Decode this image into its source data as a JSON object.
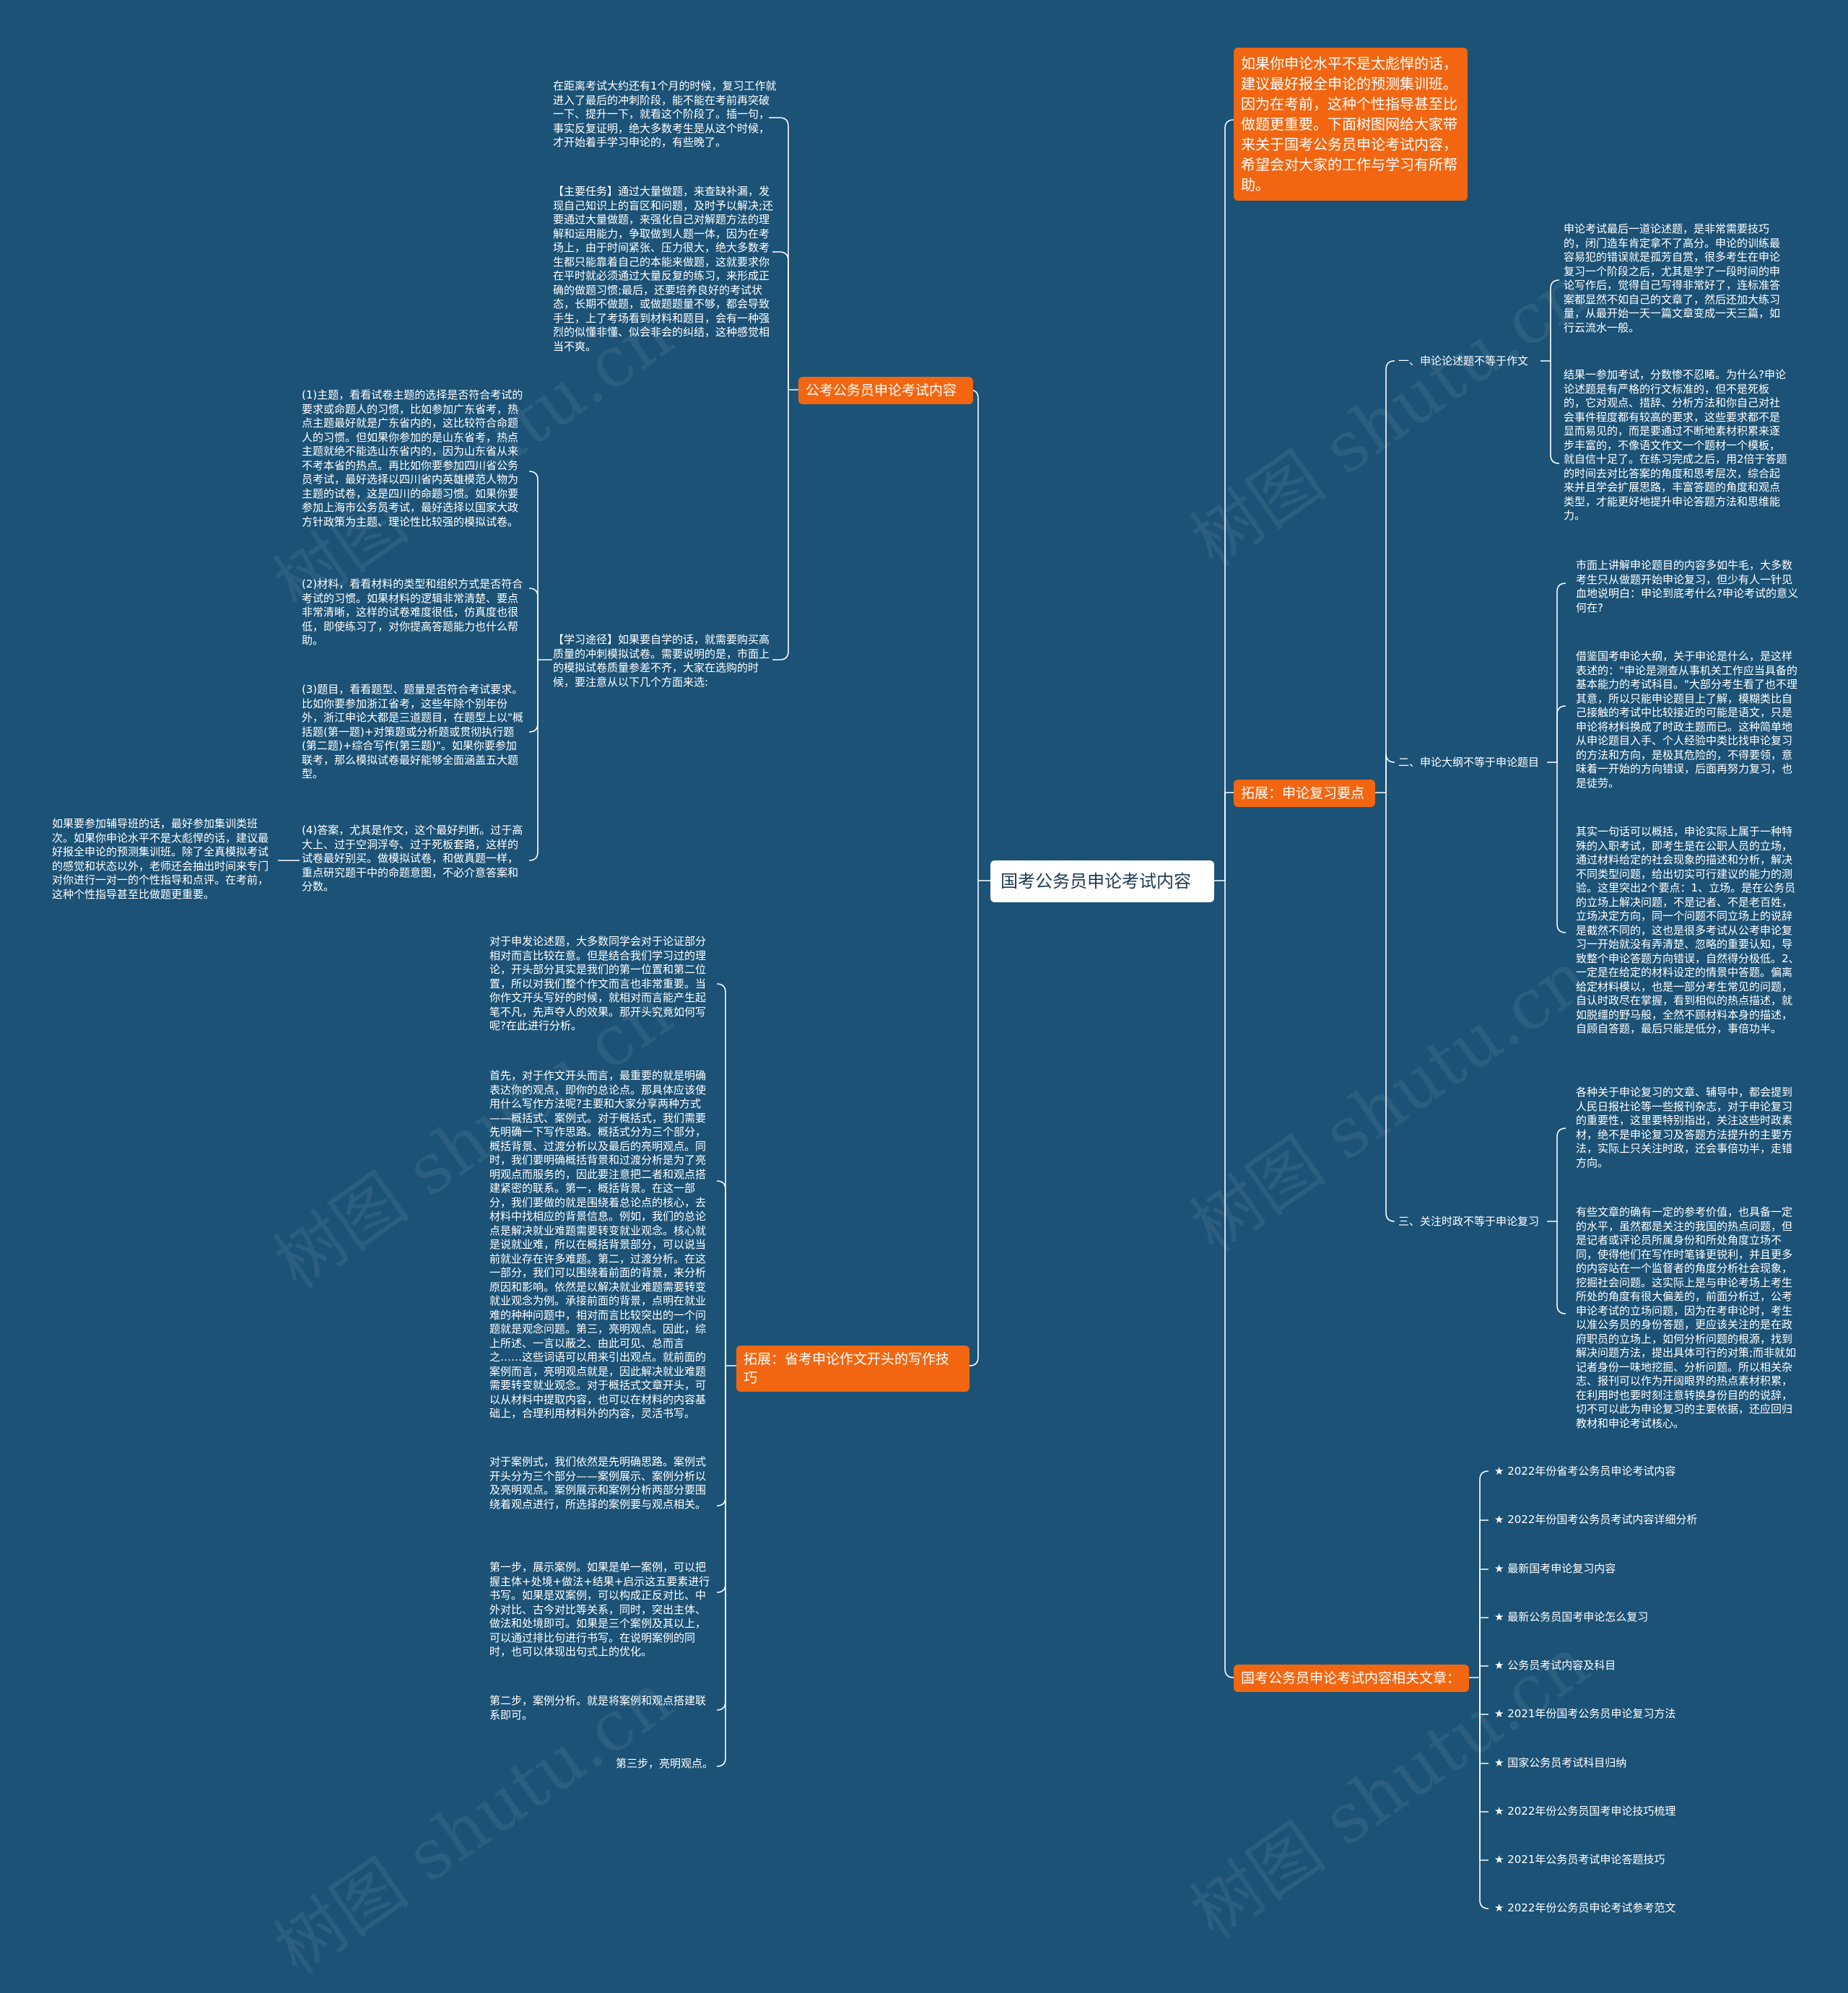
{
  "center": "国考公务员申论考试内容",
  "intro": "如果你申论水平不是太彪悍的话，建议最好报全申论的预测集训班。因为在考前，这种个性指导甚至比做题更重要。下面树图网给大家带来关于国考公务员申论考试内容，希望会对大家的工作与学习有所帮助。",
  "left_branches": [
    {
      "title": "公考公务员申论考试内容",
      "texts": [
        "在距离考试大约还有1个月的时候，复习工作就进入了最后的冲刺阶段，能不能在考前再突破一下、提升一下，就看这个阶段了。插一句，事实反复证明，绝大多数考生是从这个时候，才开始着手学习申论的，有些晚了。",
        "【主要任务】通过大量做题，来查缺补漏，发现自己知识上的盲区和问题，及时予以解决;还要通过大量做题，来强化自己对解题方法的理解和运用能力，争取做到人题一体，因为在考场上，由于时间紧张、压力很大，绝大多数考生都只能靠着自己的本能来做题，这就要求你在平时就必须通过大量反复的练习，来形成正确的做题习惯;最后，还要培养良好的考试状态，长期不做题，或做题题量不够，都会导致手生，上了考场看到材料和题目，会有一种强烈的似懂非懂、似会非会的纠结，这种感觉相当不爽。",
        "【学习途径】如果要自学的话，就需要购买高质量的冲刺模拟试卷。需要说明的是，市面上的模拟试卷质量参差不齐，大家在选购的时候，要注意从以下几个方面来选:"
      ],
      "subitems": [
        "(1)主题，看看试卷主题的选择是否符合考试的要求或命题人的习惯，比如参加广东省考，热点主题最好就是广东省内的，这比较符合命题人的习惯。但如果你参加的是山东省考，热点主题就绝不能选山东省内的，因为山东省从来不考本省的热点。再比如你要参加四川省公务员考试，最好选择以四川省内英雄模范人物为主题的试卷，这是四川的命题习惯。如果你要参加上海市公务员考试，最好选择以国家大政方针政策为主题、理论性比较强的模拟试卷。",
        "(2)材料，看看材料的类型和组织方式是否符合考试的习惯。如果材料的逻辑非常清楚、要点非常清晰，这样的试卷难度很低，仿真度也很低，即使练习了，对你提高答题能力也什么帮助。",
        "(3)题目，看看题型、题量是否符合考试要求。比如你要参加浙江省考，这些年除个别年份外，浙江申论大都是三道题目，在题型上以\"概括题(第一题)+对策题或分析题或贯彻执行题(第二题)+综合写作(第三题)\"。如果你要参加联考，那么模拟试卷最好能够全面涵盖五大题型。",
        "(4)答案，尤其是作文，这个最好判断。过于高大上、过于空洞浮夸、过于死板套路，这样的试卷最好别买。做模拟试卷，和做真题一样，重点研究题干中的命题意图，不必介意答案和分数。"
      ],
      "leaf": "如果要参加辅导班的话，最好参加集训类班次。如果你申论水平不是太彪悍的话，建议最好报全申论的预测集训班。除了全真模拟考试的感觉和状态以外，老师还会抽出时间来专门对你进行一对一的个性指导和点评。在考前，这种个性指导甚至比做题更重要。"
    },
    {
      "title": "拓展：省考申论作文开头的写作技巧",
      "texts": [
        "对于申发论述题，大多数同学会对于论证部分相对而言比较在意。但是结合我们学习过的理论，开头部分其实是我们的第一位置和第二位置，所以对我们整个作文而言也非常重要。当你作文开头写好的时候，就相对而言能产生起笔不凡，先声夺人的效果。那开头究竟如何写呢?在此进行分析。",
        "首先，对于作文开头而言，最重要的就是明确表达你的观点，即你的总论点。那具体应该使用什么写作方法呢?主要和大家分享两种方式——概括式、案例式。对于概括式，我们需要先明确一下写作思路。概括式分为三个部分，概括背景、过渡分析以及最后的亮明观点。同时，我们要明确概括背景和过渡分析是为了亮明观点而服务的，因此要注意把二者和观点搭建紧密的联系。第一，概括背景。在这一部分，我们要做的就是围绕着总论点的核心，去材料中找相应的背景信息。例如，我们的总论点是解决就业难题需要转变就业观念。核心就是说就业难，所以在概括背景部分，可以说当前就业存在许多难题。第二，过渡分析。在这一部分，我们可以围绕着前面的背景，来分析原因和影响。依然是以解决就业难题需要转变就业观念为例。承接前面的背景，点明在就业难的种种问题中，相对而言比较突出的一个问题就是观念问题。第三，亮明观点。因此，综上所述、一言以蔽之、由此可见、总而言之……这些词语可以用来引出观点。就前面的案例而言，亮明观点就是，因此解决就业难题需要转变就业观念。对于概括式文章开头，可以从材料中提取内容，也可以在材料的内容基础上，合理利用材料外的内容，灵活书写。",
        "对于案例式，我们依然是先明确思路。案例式开头分为三个部分——案例展示、案例分析以及亮明观点。案例展示和案例分析两部分要围绕着观点进行，所选择的案例要与观点相关。",
        "第一步，展示案例。如果是单一案例，可以把握主体+处境+做法+结果+启示这五要素进行书写。如果是双案例，可以构成正反对比、中外对比、古今对比等关系，同时，突出主体、做法和处境即可。如果是三个案例及其以上，可以通过排比句进行书写。在说明案例的同时，也可以体现出句式上的优化。",
        "第二步，案例分析。就是将案例和观点搭建联系即可。",
        "第三步，亮明观点。"
      ]
    }
  ],
  "right_review": {
    "title": "拓展：申论复习要点",
    "groups": [
      {
        "label": "一、申论论述题不等于作文",
        "texts": [
          "申论考试最后一道论述题，是非常需要技巧的，闭门造车肯定拿不了高分。申论的训练最容易犯的错误就是孤芳自赏，很多考生在申论复习一个阶段之后，尤其是学了一段时间的申论写作后，觉得自己写得非常好了，连标准答案都显然不如自己的文章了，然后还加大练习量，从最开始一天一篇文章变成一天三篇，如行云流水一般。",
          "结果一参加考试，分数惨不忍睹。为什么?申论论述题是有严格的行文标准的，但不是死板的，它对观点、措辞、分析方法和你自己对社会事件程度都有较高的要求，这些要求都不是显而易见的，而是要通过不断地素材积累来逐步丰富的，不像语文作文一个题材一个模板，就自信十足了。在练习完成之后，用2倍于答题的时间去对比答案的角度和思考层次，综合起来并且学会扩展思路，丰富答题的角度和观点类型，才能更好地提升申论答题方法和思维能力。"
        ]
      },
      {
        "label": "二、申论大纲不等于申论题目",
        "texts": [
          "市面上讲解申论题目的内容多如牛毛，大多数考生只从做题开始申论复习，但少有人一针见血地说明白：申论到底考什么?申论考试的意义何在?",
          "借鉴国考申论大纲，关于申论是什么，是这样表述的：\"申论是测查从事机关工作应当具备的基本能力的考试科目。\"大部分考生看了也不理其意，所以只能申论题目上了解，模糊类比自己接触的考试中比较接近的可能是语文，只是申论将材料换成了时政主题而已。这种简单地从申论题目入手、个人经验中类比找申论复习的方法和方向，是极其危险的，不得要领，意味着一开始的方向错误，后面再努力复习，也是徒劳。",
          "其实一句话可以概括，申论实际上属于一种特殊的入职考试，即考生是在公职人员的立场，通过材料给定的社会现象的描述和分析，解决不同类型问题，给出切实可行建议的能力的测验。这里突出2个要点：1、立场。是在公务员的立场上解决问题，不是记者、不是老百姓，立场决定方向，同一个问题不同立场上的说辞是截然不同的，这也是很多考试从公考申论复习一开始就没有弄清楚、忽略的重要认知，导致整个申论答题方向错误，自然得分极低。2、一定是在给定的材料设定的情景中答题。偏离给定材料模以，也是一部分考生常见的问题，自认时政尽在掌握，看到相似的热点描述，就如脱缰的野马般，全然不顾材料本身的描述，自顾自答题，最后只能是低分，事倍功半。"
        ]
      },
      {
        "label": "三、关注时政不等于申论复习",
        "texts": [
          "各种关于申论复习的文章、辅导中，都会提到人民日报社论等一些报刊杂志，对于申论复习的重要性，这里要特别指出，关注这些时政素材，绝不是申论复习及答题方法提升的主要方法，实际上只关注时政，还会事倍功半，走错方向。",
          "有些文章的确有一定的参考价值，也具备一定的水平，虽然都是关注的我国的热点问题，但是记者或评论员所属身份和所处角度立场不同，使得他们在写作时笔锋更锐利，并且更多的内容站在一个监督者的角度分析社会现象，挖掘社会问题。这实际上是与申论考场上考生所处的角度有很大偏差的，前面分析过，公考申论考试的立场问题，因为在考申论时，考生以准公务员的身份答题，更应该关注的是在政府职员的立场上，如何分析问题的根源，找到解决问题方法，提出具体可行的对策;而非就如记者身份一味地挖掘、分析问题。所以相关杂志、报刊可以作为开阔眼界的热点素材积累，在利用时也要时刻注意转换身份目的的说辞，切不可以此为申论复习的主要依据，还应回归教材和申论考试核心。"
        ]
      }
    ]
  },
  "related": {
    "title": "国考公务员申论考试内容相关文章：",
    "items": [
      "★ 2022年份省考公务员申论考试内容",
      "★ 2022年份国考公务员考试内容详细分析",
      "★ 最新国考申论复习内容",
      "★ 最新公务员国考申论怎么复习",
      "★ 公务员考试内容及科目",
      "★ 2021年份国考公务员申论复习方法",
      "★ 国家公务员考试科目归纳",
      "★ 2022年份公务员国考申论技巧梳理",
      "★ 2021年公务员考试申论答题技巧",
      "★ 2022年份公务员申论考试参考范文"
    ]
  },
  "watermark": "树图 shutu.cn",
  "colors": {
    "background": "#1b5276",
    "accent": "#f26611",
    "center_bg": "#ffffff"
  }
}
